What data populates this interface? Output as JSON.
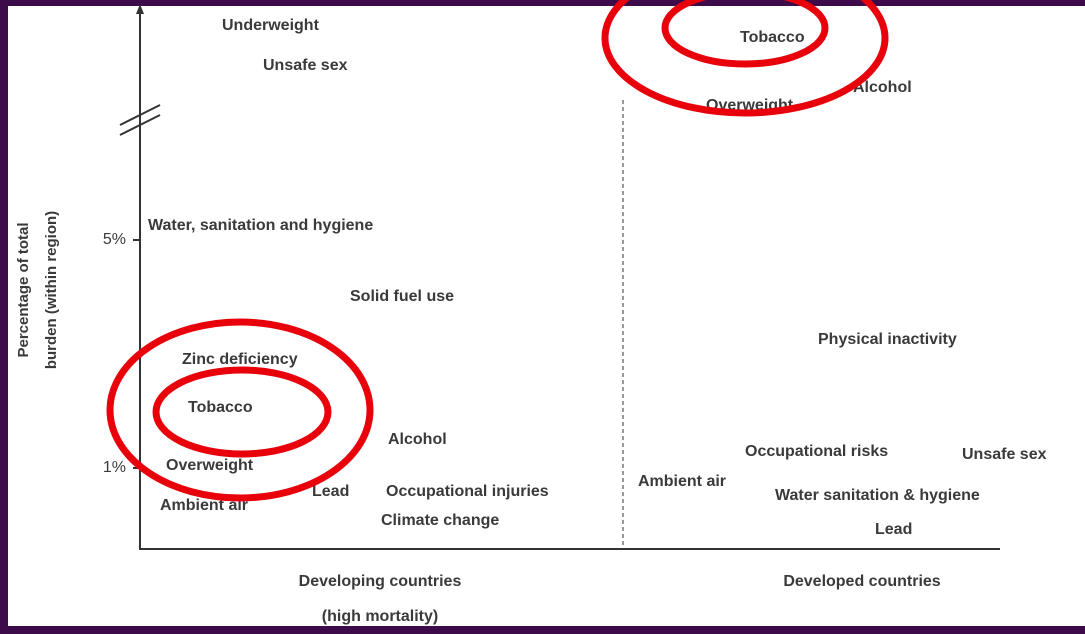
{
  "y_axis": {
    "title_lines": [
      "Percentage of total",
      "burden (within region)"
    ],
    "tick_labels": [
      "5%",
      "1%"
    ]
  },
  "groups": [
    {
      "label_lines": [
        "Developing countries",
        "(high mortality)"
      ],
      "risk_factors": [
        "Underweight",
        "Unsafe sex",
        "Water, sanitation and hygiene",
        "Solid fuel use",
        "Zinc deficiency",
        "Tobacco",
        "Alcohol",
        "Overweight",
        "Ambient air",
        "Lead",
        "Occupational injuries",
        "Climate change"
      ]
    },
    {
      "label_lines": [
        "Developed countries"
      ],
      "risk_factors": [
        "Tobacco",
        "Overweight",
        "Alcohol",
        "Physical inactivity",
        "Occupational risks",
        "Unsafe sex",
        "Ambient air",
        "Water sanitation & hygiene",
        "Lead"
      ]
    }
  ]
}
